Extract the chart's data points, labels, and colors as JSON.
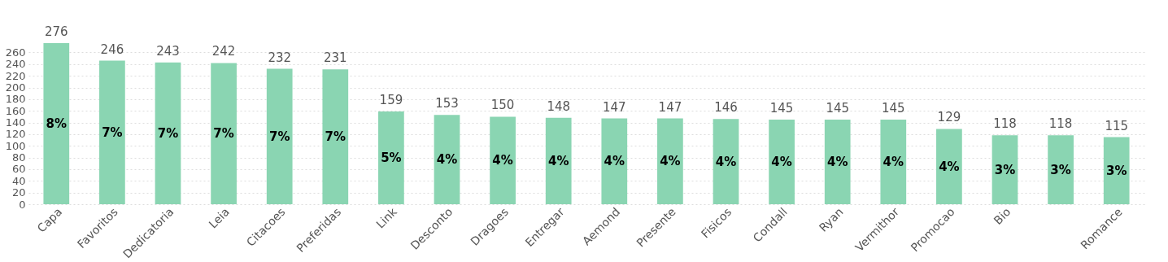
{
  "chart_data": {
    "type": "bar",
    "categories": [
      "Capa",
      "Favoritos",
      "Dedicatoria",
      "Leia",
      "Citacoes",
      "Preferidas",
      "Link",
      "Desconto",
      "Dragoes",
      "Entregar",
      "Aemond",
      "Presente",
      "Fisicos",
      "Condall",
      "Ryan",
      "Vermithor",
      "Promocao",
      "Bio",
      null,
      "Romance"
    ],
    "values": [
      276,
      246,
      243,
      242,
      232,
      231,
      159,
      153,
      150,
      148,
      147,
      147,
      146,
      145,
      145,
      145,
      129,
      118,
      118,
      115
    ],
    "color": "#8ad5b2",
    "data_labels": true,
    "annotations": [
      "8%",
      "7%",
      "7%",
      "7%",
      "7%",
      "7%",
      "5%",
      "4%",
      "4%",
      "4%",
      "4%",
      "4%",
      "4%",
      "4%",
      "4%",
      "4%",
      "4%",
      "3%",
      "3%",
      "3%"
    ],
    "ylim": [
      0,
      276
    ],
    "yticks": [
      0,
      20,
      40,
      60,
      80,
      100,
      120,
      140,
      160,
      180,
      200,
      220,
      240,
      260
    ],
    "grid": "y"
  }
}
